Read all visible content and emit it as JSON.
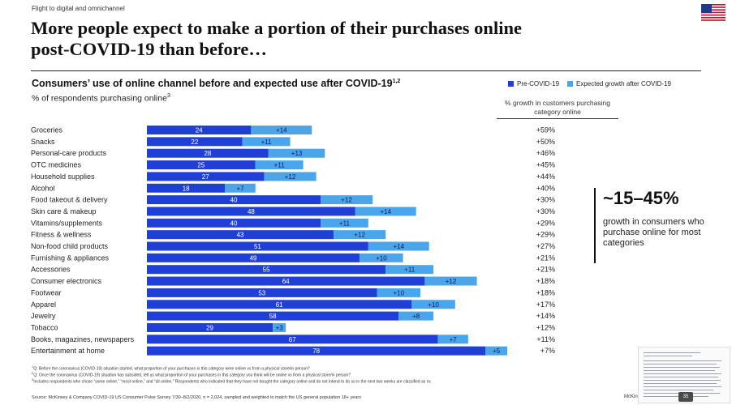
{
  "header": {
    "kicker": "Flight to digital and omnichannel",
    "title_line1": "More people expect to make a portion of their purchases online",
    "title_line2": "post-COVID-19 than before…",
    "flag_icon": "us-flag-icon"
  },
  "chart_data": {
    "type": "bar",
    "title": "Consumers’ use of online channel before and expected use after COVID-19",
    "title_sup": "1,2",
    "unit": "% of respondents purchasing online",
    "unit_sup": "3",
    "growth_header": "% growth in customers purchasing category online",
    "xlim": [
      0,
      100
    ],
    "categories": [
      "Groceries",
      "Snacks",
      "Personal-care products",
      "OTC medicines",
      "Household supplies",
      "Alcohol",
      "Food takeout & delivery",
      "Skin care & makeup",
      "Vitamins/supplements",
      "Fitness & wellness",
      "Non-food child products",
      "Furnishing & appliances",
      "Accessories",
      "Consumer electronics",
      "Footwear",
      "Apparel",
      "Jewelry",
      "Tobacco",
      "Books, magazines, newspapers",
      "Entertainment at home"
    ],
    "series": [
      {
        "name": "Pre-COVID-19",
        "color": "#1f3fd6",
        "values": [
          24,
          22,
          28,
          25,
          27,
          18,
          40,
          48,
          40,
          43,
          51,
          49,
          55,
          64,
          53,
          61,
          58,
          29,
          67,
          78
        ],
        "labels": [
          "24",
          "22",
          "28",
          "25",
          "27",
          "18",
          "40",
          "48",
          "40",
          "43",
          "51",
          "49",
          "55",
          "64",
          "53",
          "61",
          "58",
          "29",
          "67",
          "78"
        ]
      },
      {
        "name": "Expected growth after COVID-19",
        "color": "#4aa5ea",
        "values": [
          14,
          11,
          13,
          11,
          12,
          7,
          12,
          14,
          11,
          12,
          14,
          10,
          11,
          12,
          10,
          10,
          8,
          3,
          7,
          5
        ],
        "labels": [
          "+14",
          "+11",
          "+13",
          "+11",
          "+12",
          "+7",
          "+12",
          "+14",
          "+11",
          "+12",
          "+14",
          "+10",
          "+11",
          "+12",
          "+10",
          "+10",
          "+8",
          "+3",
          "+7",
          "+5"
        ]
      }
    ],
    "growth": [
      "+59%",
      "+50%",
      "+46%",
      "+45%",
      "+44%",
      "+40%",
      "+30%",
      "+30%",
      "+29%",
      "+29%",
      "+27%",
      "+21%",
      "+21%",
      "+18%",
      "+18%",
      "+17%",
      "+14%",
      "+12%",
      "+11%",
      "+7%"
    ]
  },
  "callout": {
    "big": "~15–45%",
    "text": "growth in consumers who purchase online for most categories"
  },
  "footnotes": [
    {
      "sup": "1",
      "text": "Q: Before the coronavirus (COVID-19) situation started, what proportion of your purchases in this category were online vs from a physical store/in person?"
    },
    {
      "sup": "2",
      "text": "Q: Once the coronavirus (COVID-19) situation has subsided, tell us what proportion of your purchases in this category you think will be online vs from a physical store/in person?"
    },
    {
      "sup": "3",
      "text": "Includes respondents who chose “some online,” “most online,” and “all online.” Respondents who indicated that they have not bought the category online and do not intend to do so in the next two weeks are classified as nc"
    }
  ],
  "source": "Source: McKinsey & Company COVID-19 US Consumer Pulse Survey 7/30–8/2/2020, n = 2,024, sampled and weighted to match the US general population 18+ years",
  "brand": "McKinse",
  "page_number": "35"
}
